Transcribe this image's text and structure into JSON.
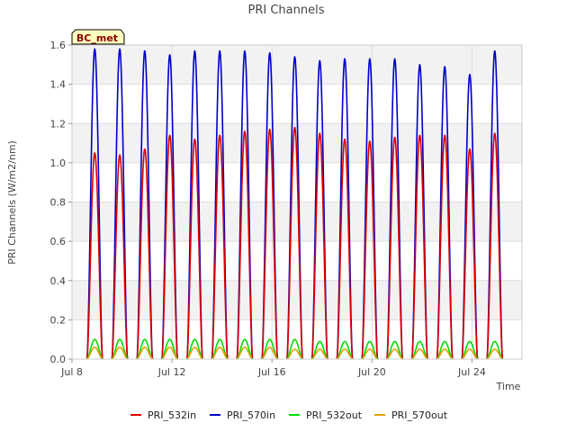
{
  "chart_data": {
    "type": "line",
    "title": "PRI Channels",
    "xlabel": "Time",
    "ylabel": "PRI Channels (W/m2/nm)",
    "badge": "BC_met",
    "ylim": [
      0,
      1.6
    ],
    "xlim": [
      0,
      18
    ],
    "xticks": [
      {
        "value": 0,
        "label": "Jul 8"
      },
      {
        "value": 4,
        "label": "Jul 12"
      },
      {
        "value": 8,
        "label": "Jul 16"
      },
      {
        "value": 12,
        "label": "Jul 20"
      },
      {
        "value": 16,
        "label": "Jul 24"
      }
    ],
    "yticks": [
      {
        "value": 0.0,
        "label": "0.0"
      },
      {
        "value": 0.2,
        "label": "0.2"
      },
      {
        "value": 0.4,
        "label": "0.4"
      },
      {
        "value": 0.6,
        "label": "0.6"
      },
      {
        "value": 0.8,
        "label": "0.8"
      },
      {
        "value": 1.0,
        "label": "1.0"
      },
      {
        "value": 1.2,
        "label": "1.2"
      },
      {
        "value": 1.4,
        "label": "1.4"
      },
      {
        "value": 1.6,
        "label": "1.6"
      }
    ],
    "day_starts": [
      0.6,
      1.6,
      2.6,
      3.6,
      4.6,
      5.6,
      6.6,
      7.6,
      8.6,
      9.6,
      10.6,
      11.6,
      12.6,
      13.6,
      14.6,
      15.6,
      16.6
    ],
    "day_width": 0.62,
    "series": [
      {
        "name": "PRI_532in",
        "color": "#dd0000",
        "daily_peaks": [
          1.05,
          1.04,
          1.07,
          1.14,
          1.12,
          1.14,
          1.16,
          1.17,
          1.18,
          1.15,
          1.12,
          1.11,
          1.13,
          1.14,
          1.14,
          1.07,
          1.15
        ]
      },
      {
        "name": "PRI_570in",
        "color": "#0000cc",
        "daily_peaks": [
          1.58,
          1.58,
          1.57,
          1.55,
          1.57,
          1.57,
          1.57,
          1.56,
          1.54,
          1.52,
          1.53,
          1.53,
          1.53,
          1.5,
          1.49,
          1.45,
          1.57
        ]
      },
      {
        "name": "PRI_532out",
        "color": "#00dd00",
        "daily_peaks": [
          0.1,
          0.1,
          0.1,
          0.1,
          0.1,
          0.1,
          0.1,
          0.1,
          0.1,
          0.09,
          0.09,
          0.09,
          0.09,
          0.09,
          0.09,
          0.09,
          0.09
        ]
      },
      {
        "name": "PRI_570out",
        "color": "#e6a000",
        "daily_peaks": [
          0.06,
          0.06,
          0.06,
          0.06,
          0.06,
          0.06,
          0.06,
          0.06,
          0.05,
          0.05,
          0.05,
          0.05,
          0.05,
          0.05,
          0.05,
          0.05,
          0.05
        ]
      }
    ]
  }
}
